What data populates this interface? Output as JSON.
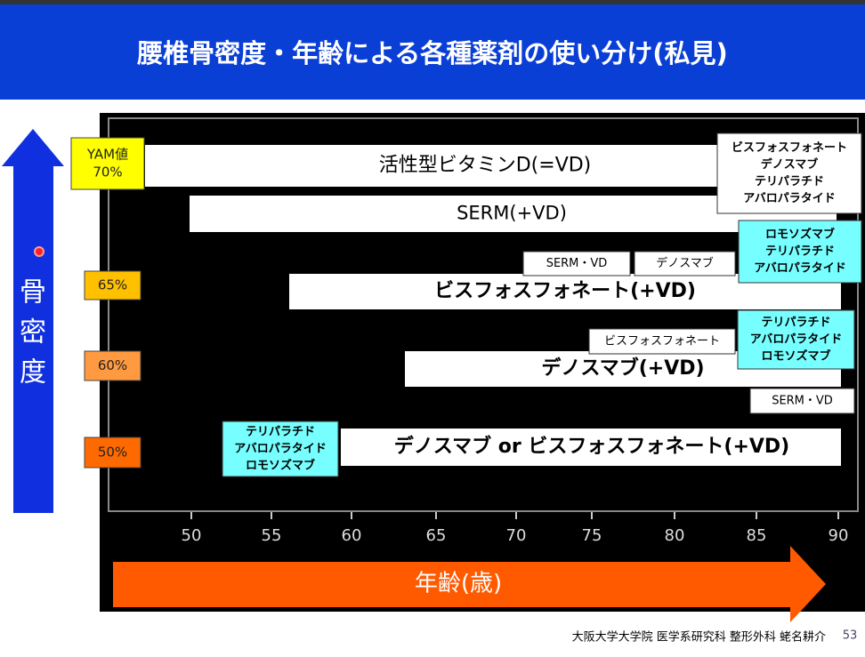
{
  "title": "腰椎骨密度・年齢による各種薬剤の使い分け(私見)",
  "y_axis": {
    "label": [
      "骨",
      "密",
      "度"
    ],
    "levels": [
      [
        "YAM値",
        "70%"
      ],
      [
        "65%"
      ],
      [
        "60%"
      ],
      [
        "50%"
      ]
    ]
  },
  "x_axis": {
    "label": "年齢(歳)",
    "ticks": [
      "50",
      "55",
      "60",
      "65",
      "70",
      "75",
      "80",
      "85",
      "90"
    ]
  },
  "bars": [
    "活性型ビタミンD(=VD)",
    "SERM(+VD)",
    "ビスフォスフォネート(+VD)",
    "デノスマブ(+VD)",
    "デノスマブ or  ビスフォスフォネート(+VD)"
  ],
  "boxes": [
    [
      "ビスフォスフォネート",
      "デノスマブ",
      "テリパラチド",
      "アバロパラタイド"
    ],
    [
      "ロモソズマブ",
      "テリパラチド",
      "アバロパラタイド"
    ],
    [
      "SERM・VD"
    ],
    [
      "デノスマブ"
    ],
    [
      "ビスフォスフォネート"
    ],
    [
      "テリパラチド",
      "アバロパラタイド",
      "ロモソズマブ"
    ],
    [
      "SERM・VD"
    ],
    [
      "テリパラチド",
      "アバロパラタイド",
      "ロモソズマブ"
    ]
  ],
  "footer": "大阪大学大学院  医学系研究科  整形外科  蛯名耕介",
  "page_number": "53"
}
